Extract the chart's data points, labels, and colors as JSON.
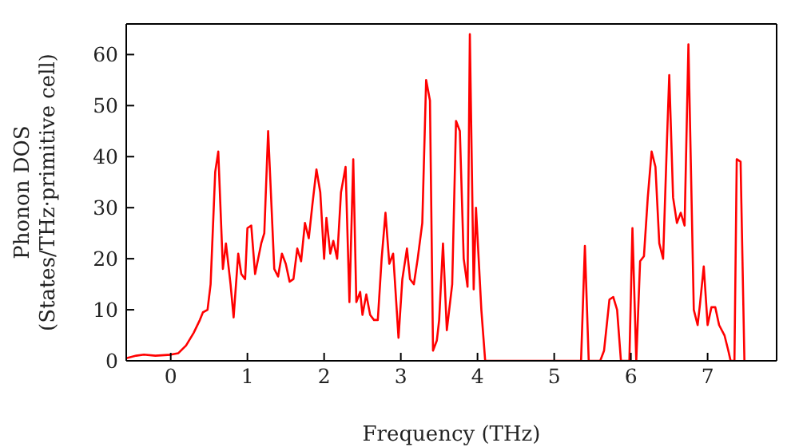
{
  "chart_data": {
    "type": "line",
    "xlabel": "Frequency (THz)",
    "ylabel": "Phonon DOS\n(States/THz·primitive cell)",
    "x": [
      -0.58,
      -0.45,
      -0.35,
      -0.2,
      0,
      0.1,
      0.2,
      0.3,
      0.38,
      0.42,
      0.48,
      0.52,
      0.58,
      0.62,
      0.68,
      0.72,
      0.78,
      0.82,
      0.88,
      0.92,
      0.97,
      1.0,
      1.05,
      1.1,
      1.18,
      1.22,
      1.27,
      1.3,
      1.35,
      1.4,
      1.45,
      1.5,
      1.55,
      1.6,
      1.65,
      1.7,
      1.75,
      1.8,
      1.85,
      1.9,
      1.95,
      2.0,
      2.03,
      2.08,
      2.12,
      2.17,
      2.22,
      2.28,
      2.33,
      2.38,
      2.42,
      2.47,
      2.5,
      2.55,
      2.6,
      2.65,
      2.7,
      2.75,
      2.8,
      2.85,
      2.9,
      2.97,
      3.02,
      3.08,
      3.12,
      3.17,
      3.22,
      3.28,
      3.33,
      3.38,
      3.42,
      3.47,
      3.5,
      3.55,
      3.6,
      3.67,
      3.72,
      3.77,
      3.82,
      3.87,
      3.9,
      3.95,
      3.98,
      4.05,
      4.1,
      5.35,
      5.4,
      5.45,
      5.6,
      5.65,
      5.72,
      5.77,
      5.82,
      5.87,
      5.98,
      6.02,
      6.07,
      6.12,
      6.17,
      6.22,
      6.27,
      6.32,
      6.37,
      6.42,
      6.47,
      6.5,
      6.55,
      6.6,
      6.65,
      6.7,
      6.75,
      6.82,
      6.87,
      6.9,
      6.95,
      7.0,
      7.05,
      7.1,
      7.15,
      7.22,
      7.27,
      7.3,
      7.35,
      7.38,
      7.43,
      7.48
    ],
    "series": [
      {
        "color": "#ff0000",
        "values": [
          0.5,
          1,
          1.2,
          1,
          1.2,
          1.5,
          3,
          5.5,
          8,
          9.5,
          10,
          15,
          37,
          41,
          18,
          23,
          15,
          8.5,
          21,
          17,
          16,
          26,
          26.5,
          17,
          23,
          25,
          45,
          35,
          18,
          16.5,
          21,
          19,
          15.5,
          16,
          22,
          19.5,
          27,
          24,
          31,
          37.5,
          33,
          20,
          28,
          21,
          23.5,
          20,
          33,
          38,
          11.5,
          39.5,
          11.5,
          13.5,
          9,
          13,
          9,
          8,
          8,
          20,
          29,
          19,
          21,
          4.5,
          16,
          22,
          16,
          15,
          20,
          27,
          55,
          51,
          2,
          4,
          8,
          23,
          6,
          15,
          47,
          45,
          20,
          14.5,
          64,
          14,
          30,
          10,
          0,
          0,
          22.5,
          0,
          0,
          2,
          12,
          12.5,
          10,
          0,
          0,
          26,
          0,
          19.5,
          20.5,
          32,
          41,
          38,
          23,
          20,
          43,
          56,
          32,
          27,
          29,
          26.5,
          62,
          10,
          7,
          11,
          18.5,
          7,
          10.5,
          10.5,
          7,
          5,
          2,
          0,
          0,
          39.5,
          39,
          0
        ]
      }
    ],
    "xlim": [
      -0.58,
      7.9
    ],
    "xticks": [
      0,
      1,
      2,
      3,
      4,
      5,
      6,
      7
    ],
    "ylim": [
      0,
      66
    ],
    "yticks": [
      0,
      10,
      20,
      30,
      40,
      50,
      60
    ],
    "marker": "none",
    "line_style": "solid"
  }
}
